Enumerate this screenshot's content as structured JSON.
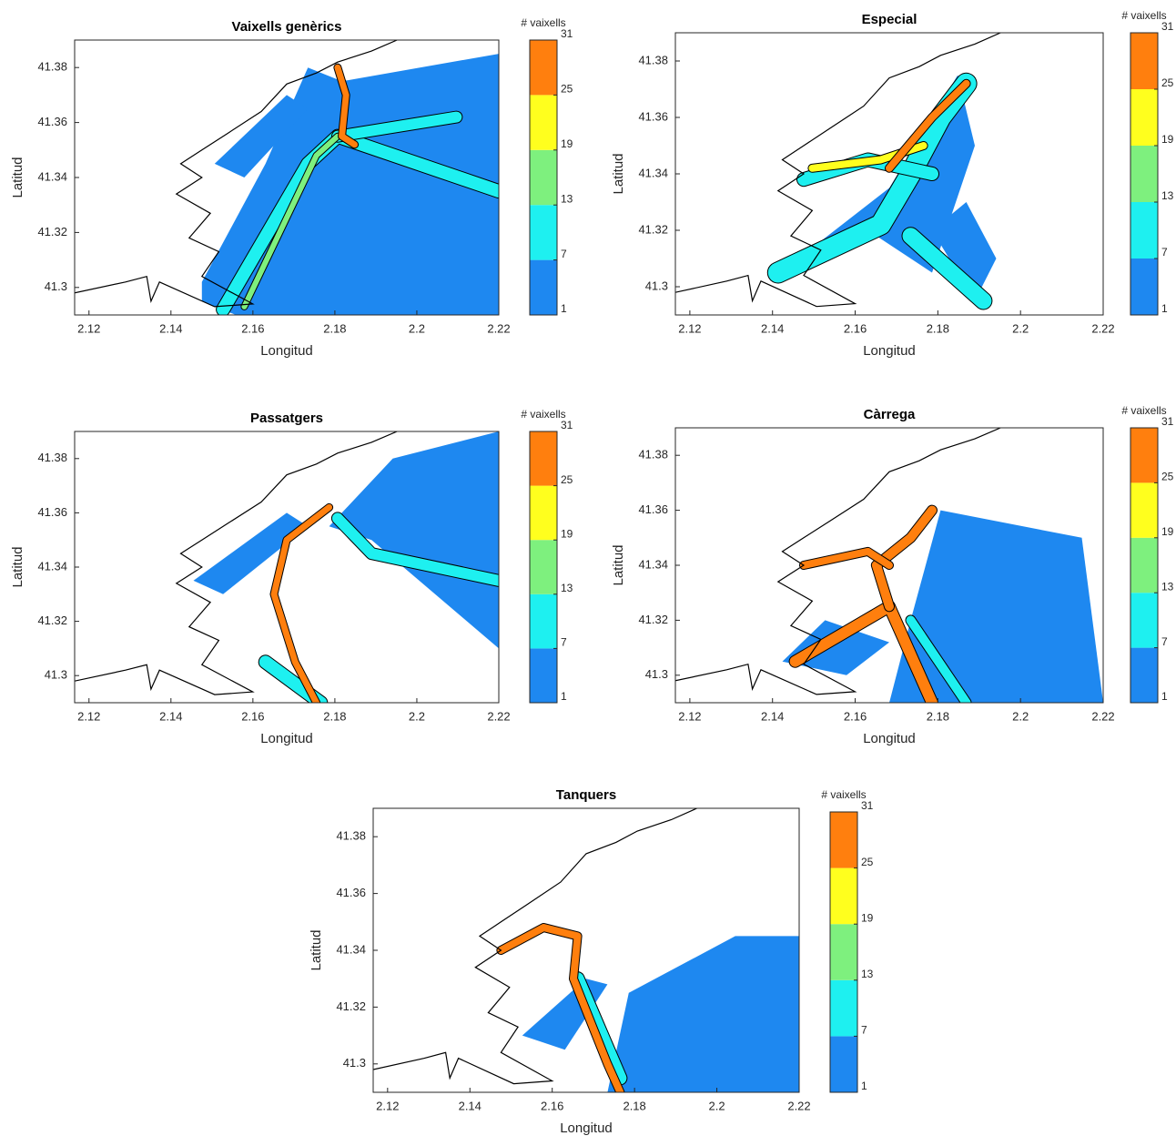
{
  "chart_data": [
    {
      "type": "contour",
      "title": "Vaixells genèrics",
      "x_label": "Longitud",
      "y_label": "Latitud",
      "xlim": [
        2.1165,
        2.22
      ],
      "ylim": [
        41.29,
        41.39
      ],
      "xticks": [
        2.12,
        2.14,
        2.16,
        2.18,
        2.2,
        2.22
      ],
      "yticks": [
        41.3,
        41.32,
        41.34,
        41.36,
        41.38
      ],
      "colorbar": {
        "label": "# vaixells",
        "levels": [
          1,
          7,
          13,
          19,
          25,
          31
        ],
        "colors": [
          "#1e88f0",
          "#1ef0f0",
          "#7ef07e",
          "#ffff1e",
          "#ff7f0e"
        ]
      }
    },
    {
      "type": "contour",
      "title": "Especial",
      "x_label": "Longitud",
      "y_label": "Latitud",
      "xlim": [
        2.1165,
        2.22
      ],
      "ylim": [
        41.29,
        41.39
      ],
      "xticks": [
        2.12,
        2.14,
        2.16,
        2.18,
        2.2,
        2.22
      ],
      "yticks": [
        41.3,
        41.32,
        41.34,
        41.36,
        41.38
      ],
      "colorbar": {
        "label": "# vaixells",
        "levels": [
          1,
          7,
          13,
          19,
          25,
          31
        ],
        "colors": [
          "#1e88f0",
          "#1ef0f0",
          "#7ef07e",
          "#ffff1e",
          "#ff7f0e"
        ]
      }
    },
    {
      "type": "contour",
      "title": "Passatgers",
      "x_label": "Longitud",
      "y_label": "Latitud",
      "xlim": [
        2.1165,
        2.22
      ],
      "ylim": [
        41.29,
        41.39
      ],
      "xticks": [
        2.12,
        2.14,
        2.16,
        2.18,
        2.2,
        2.22
      ],
      "yticks": [
        41.3,
        41.32,
        41.34,
        41.36,
        41.38
      ],
      "colorbar": {
        "label": "# vaixells",
        "levels": [
          1,
          7,
          13,
          19,
          25,
          31
        ],
        "colors": [
          "#1e88f0",
          "#1ef0f0",
          "#7ef07e",
          "#ffff1e",
          "#ff7f0e"
        ]
      }
    },
    {
      "type": "contour",
      "title": "Càrrega",
      "x_label": "Longitud",
      "y_label": "Latitud",
      "xlim": [
        2.1165,
        2.22
      ],
      "ylim": [
        41.29,
        41.39
      ],
      "xticks": [
        2.12,
        2.14,
        2.16,
        2.18,
        2.2,
        2.22
      ],
      "yticks": [
        41.3,
        41.32,
        41.34,
        41.36,
        41.38
      ],
      "colorbar": {
        "label": "# vaixells",
        "levels": [
          1,
          7,
          13,
          19,
          25,
          31
        ],
        "colors": [
          "#1e88f0",
          "#1ef0f0",
          "#7ef07e",
          "#ffff1e",
          "#ff7f0e"
        ]
      }
    },
    {
      "type": "contour",
      "title": "Tanquers",
      "x_label": "Longitud",
      "y_label": "Latitud",
      "xlim": [
        2.1165,
        2.22
      ],
      "ylim": [
        41.29,
        41.39
      ],
      "xticks": [
        2.12,
        2.14,
        2.16,
        2.18,
        2.2,
        2.22
      ],
      "yticks": [
        41.3,
        41.32,
        41.34,
        41.36,
        41.38
      ],
      "colorbar": {
        "label": "# vaixells",
        "levels": [
          1,
          7,
          13,
          19,
          25,
          31
        ],
        "colors": [
          "#1e88f0",
          "#1ef0f0",
          "#7ef07e",
          "#ffff1e",
          "#ff7f0e"
        ]
      }
    }
  ]
}
